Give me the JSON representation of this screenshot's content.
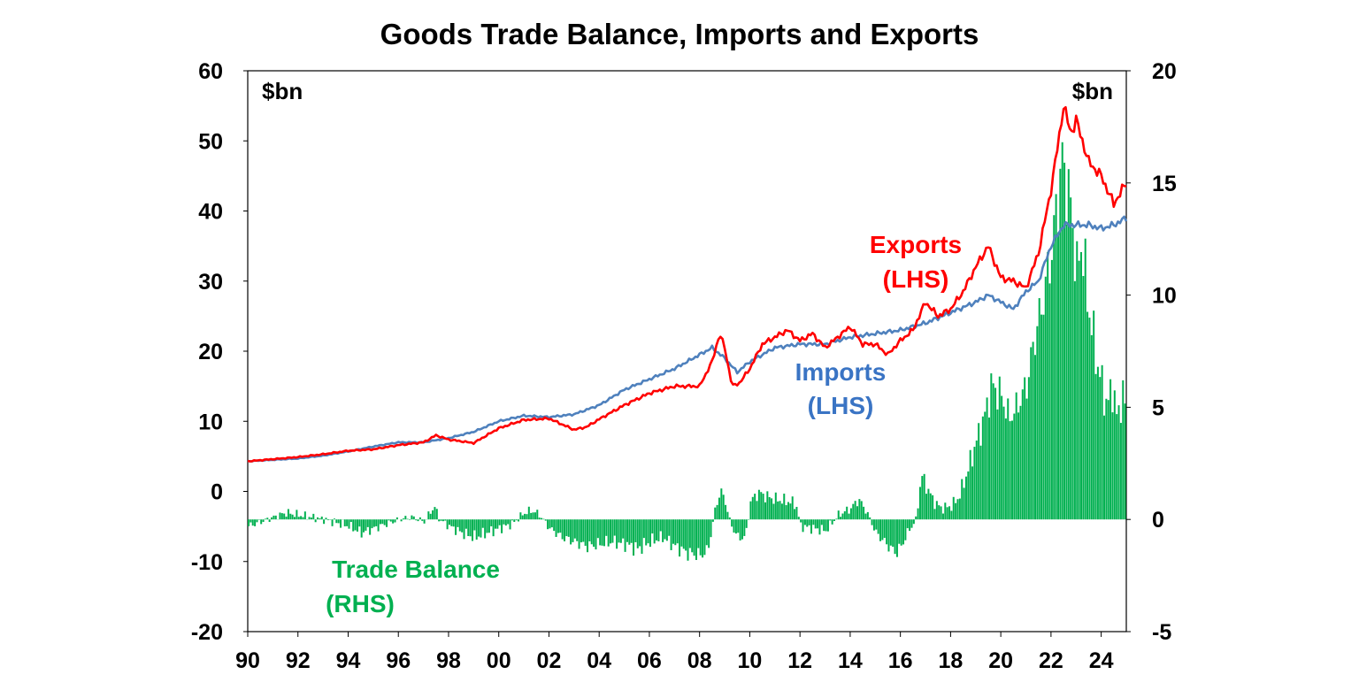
{
  "chart_data": {
    "type": "line",
    "title": "Goods Trade Balance, Imports and Exports",
    "left_axis": {
      "unit": "$bn",
      "ticks": [
        "60",
        "50",
        "40",
        "30",
        "20",
        "10",
        "0",
        "-10",
        "-20"
      ],
      "ylim": [
        -20,
        60
      ]
    },
    "right_axis": {
      "unit": "$bn",
      "ticks": [
        "20",
        "15",
        "10",
        "5",
        "0",
        "-5"
      ],
      "ylim": [
        -5,
        20
      ]
    },
    "x_axis": {
      "ticks": [
        "90",
        "92",
        "94",
        "96",
        "98",
        "00",
        "02",
        "04",
        "06",
        "08",
        "10",
        "12",
        "14",
        "16",
        "18",
        "20",
        "22",
        "24"
      ],
      "xlim": [
        1990,
        2025
      ]
    },
    "grid": false,
    "colors": {
      "exports": "#ff0000",
      "imports": "#4f81bd",
      "balance": "#00b050"
    },
    "annotations": {
      "exports": [
        "Exports",
        "(LHS)"
      ],
      "imports": [
        "Imports",
        "(LHS)"
      ],
      "balance": [
        "Trade Balance",
        "(RHS)"
      ]
    },
    "series": [
      {
        "key": "exports",
        "axis": "left",
        "x": [
          1990.0,
          1991.0,
          1992.0,
          1993.0,
          1994.0,
          1995.0,
          1996.0,
          1997.0,
          1997.5,
          1998.0,
          1999.0,
          2000.0,
          2001.0,
          2002.0,
          2002.5,
          2003.0,
          2003.5,
          2004.0,
          2005.0,
          2006.0,
          2007.0,
          2008.0,
          2008.5,
          2008.8,
          2009.0,
          2009.3,
          2009.6,
          2010.0,
          2010.5,
          2011.0,
          2011.5,
          2012.0,
          2012.5,
          2013.0,
          2013.5,
          2014.0,
          2014.5,
          2015.0,
          2015.5,
          2016.0,
          2016.5,
          2017.0,
          2017.5,
          2018.0,
          2018.5,
          2019.0,
          2019.5,
          2020.0,
          2020.5,
          2021.0,
          2021.5,
          2022.0,
          2022.3,
          2022.5,
          2022.8,
          2023.0,
          2023.5,
          2024.0,
          2024.5,
          2025.0
        ],
        "y": [
          4.3,
          4.6,
          4.9,
          5.3,
          5.8,
          6.0,
          6.6,
          7.0,
          8.0,
          7.4,
          6.9,
          9.0,
          10.2,
          10.4,
          9.6,
          8.8,
          9.2,
          10.3,
          12.3,
          14.0,
          15.0,
          15.0,
          18.5,
          22.5,
          20.5,
          15.0,
          15.5,
          17.5,
          21.0,
          22.0,
          23.0,
          21.5,
          22.5,
          20.5,
          22.0,
          23.5,
          21.0,
          21.0,
          19.5,
          21.5,
          23.0,
          27.0,
          25.0,
          26.0,
          28.5,
          32.0,
          35.0,
          30.5,
          30.0,
          29.0,
          34.0,
          43.0,
          50.0,
          55.0,
          51.0,
          53.0,
          47.0,
          45.0,
          41.0,
          44.0
        ]
      },
      {
        "key": "imports",
        "axis": "left",
        "x": [
          1990.0,
          1991.0,
          1992.0,
          1993.0,
          1994.0,
          1995.0,
          1996.0,
          1997.0,
          1998.0,
          1999.0,
          2000.0,
          2001.0,
          2002.0,
          2003.0,
          2004.0,
          2005.0,
          2006.0,
          2007.0,
          2008.0,
          2008.5,
          2009.0,
          2009.5,
          2010.0,
          2011.0,
          2012.0,
          2013.0,
          2014.0,
          2015.0,
          2016.0,
          2017.0,
          2018.0,
          2019.0,
          2019.5,
          2020.0,
          2020.5,
          2021.0,
          2021.5,
          2022.0,
          2022.5,
          2023.0,
          2023.5,
          2024.0,
          2024.5,
          2025.0
        ],
        "y": [
          4.3,
          4.5,
          4.7,
          5.1,
          5.7,
          6.4,
          7.0,
          7.0,
          7.6,
          8.5,
          10.0,
          10.8,
          10.6,
          11.0,
          12.3,
          14.5,
          16.0,
          17.5,
          19.5,
          20.5,
          19.0,
          17.0,
          18.5,
          20.5,
          21.0,
          21.0,
          22.0,
          22.5,
          23.0,
          24.0,
          25.5,
          27.0,
          28.0,
          27.0,
          26.0,
          28.5,
          30.0,
          35.0,
          38.0,
          38.0,
          38.0,
          37.5,
          38.0,
          39.0
        ]
      },
      {
        "key": "balance",
        "axis": "right",
        "type": "bar",
        "x": [
          1990.0,
          1991.0,
          1991.5,
          1992.0,
          1992.5,
          1993.0,
          1994.0,
          1994.5,
          1995.0,
          1995.5,
          1996.0,
          1996.5,
          1997.0,
          1997.4,
          1997.6,
          1998.0,
          1998.5,
          1999.0,
          1999.5,
          2000.0,
          2000.5,
          2001.0,
          2001.3,
          2001.6,
          2002.0,
          2002.5,
          2003.0,
          2003.5,
          2004.0,
          2004.5,
          2005.0,
          2005.5,
          2006.0,
          2006.5,
          2007.0,
          2007.5,
          2008.0,
          2008.3,
          2008.6,
          2008.8,
          2009.0,
          2009.2,
          2009.5,
          2009.8,
          2010.0,
          2010.3,
          2010.7,
          2011.0,
          2011.5,
          2011.8,
          2012.0,
          2012.5,
          2013.0,
          2013.5,
          2014.0,
          2014.3,
          2014.6,
          2015.0,
          2015.5,
          2015.8,
          2016.0,
          2016.3,
          2016.6,
          2016.8,
          2017.0,
          2017.3,
          2017.6,
          2018.0,
          2018.3,
          2018.6,
          2019.0,
          2019.3,
          2019.6,
          2020.0,
          2020.3,
          2020.6,
          2021.0,
          2021.3,
          2021.6,
          2022.0,
          2022.2,
          2022.4,
          2022.6,
          2022.8,
          2023.0,
          2023.2,
          2023.4,
          2023.6,
          2023.8,
          2024.0,
          2024.2,
          2024.4,
          2024.6,
          2024.8,
          2025.0
        ],
        "y": [
          -0.3,
          0.1,
          0.3,
          0.2,
          0.1,
          0.0,
          -0.3,
          -0.6,
          -0.4,
          -0.2,
          0.0,
          0.1,
          -0.1,
          0.6,
          0.0,
          -0.3,
          -0.6,
          -0.8,
          -0.6,
          -0.4,
          -0.2,
          0.3,
          0.4,
          0.2,
          -0.4,
          -0.8,
          -1.0,
          -1.2,
          -1.1,
          -1.0,
          -1.1,
          -1.3,
          -1.0,
          -0.8,
          -1.2,
          -1.5,
          -1.6,
          -1.4,
          0.5,
          1.3,
          0.8,
          -0.2,
          -0.8,
          -0.8,
          0.8,
          1.2,
          1.0,
          0.9,
          0.8,
          0.7,
          -0.3,
          -0.4,
          -0.5,
          0.2,
          0.5,
          0.9,
          0.4,
          -0.6,
          -1.2,
          -1.5,
          -1.2,
          -0.5,
          0.0,
          2.0,
          1.5,
          0.8,
          0.5,
          0.6,
          1.0,
          2.0,
          3.5,
          4.5,
          6.0,
          5.5,
          4.5,
          5.0,
          6.0,
          8.0,
          9.5,
          12.0,
          14.0,
          16.0,
          15.0,
          13.5,
          11.0,
          12.5,
          10.0,
          8.5,
          7.0,
          6.0,
          5.0,
          6.0,
          4.5,
          5.5,
          5.0
        ]
      }
    ]
  }
}
